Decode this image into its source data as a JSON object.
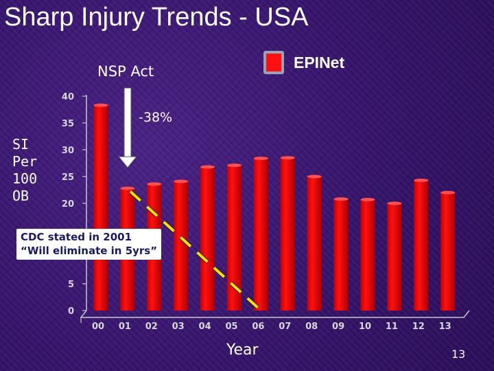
{
  "slide": {
    "title": "Sharp Injury Trends - USA",
    "page_number": "13"
  },
  "annotations": {
    "nsp_act": "NSP Act",
    "percent_change": "-38%",
    "cdc_note_line1": "CDC stated in 2001",
    "cdc_note_line2": "“Will eliminate in 5yrs”"
  },
  "chart_data": {
    "type": "bar",
    "categories": [
      "00",
      "01",
      "02",
      "03",
      "04",
      "05",
      "06",
      "07",
      "08",
      "09",
      "10",
      "11",
      "12",
      "13"
    ],
    "series": [
      {
        "name": "EPINet",
        "values": [
          38.3,
          22.8,
          23.6,
          24.1,
          26.8,
          27.1,
          28.4,
          28.5,
          25.0,
          20.8,
          20.7,
          20.0,
          24.3,
          22.0
        ]
      }
    ],
    "ylabel": "SI\nPer\n100\nOB",
    "xlabel": "Year",
    "yticks": [
      0,
      5,
      20,
      25,
      30,
      35,
      40
    ],
    "ylim": [
      0,
      40
    ],
    "trend_line": {
      "from": [
        "01",
        23
      ],
      "to": [
        "06",
        0
      ],
      "style": "dashed",
      "color": "#ffe000"
    },
    "colors": {
      "bar": "#ff1010",
      "trend": "#ffe000",
      "axis": "#c8c8c8"
    },
    "legend": "top-right",
    "grid": false
  }
}
